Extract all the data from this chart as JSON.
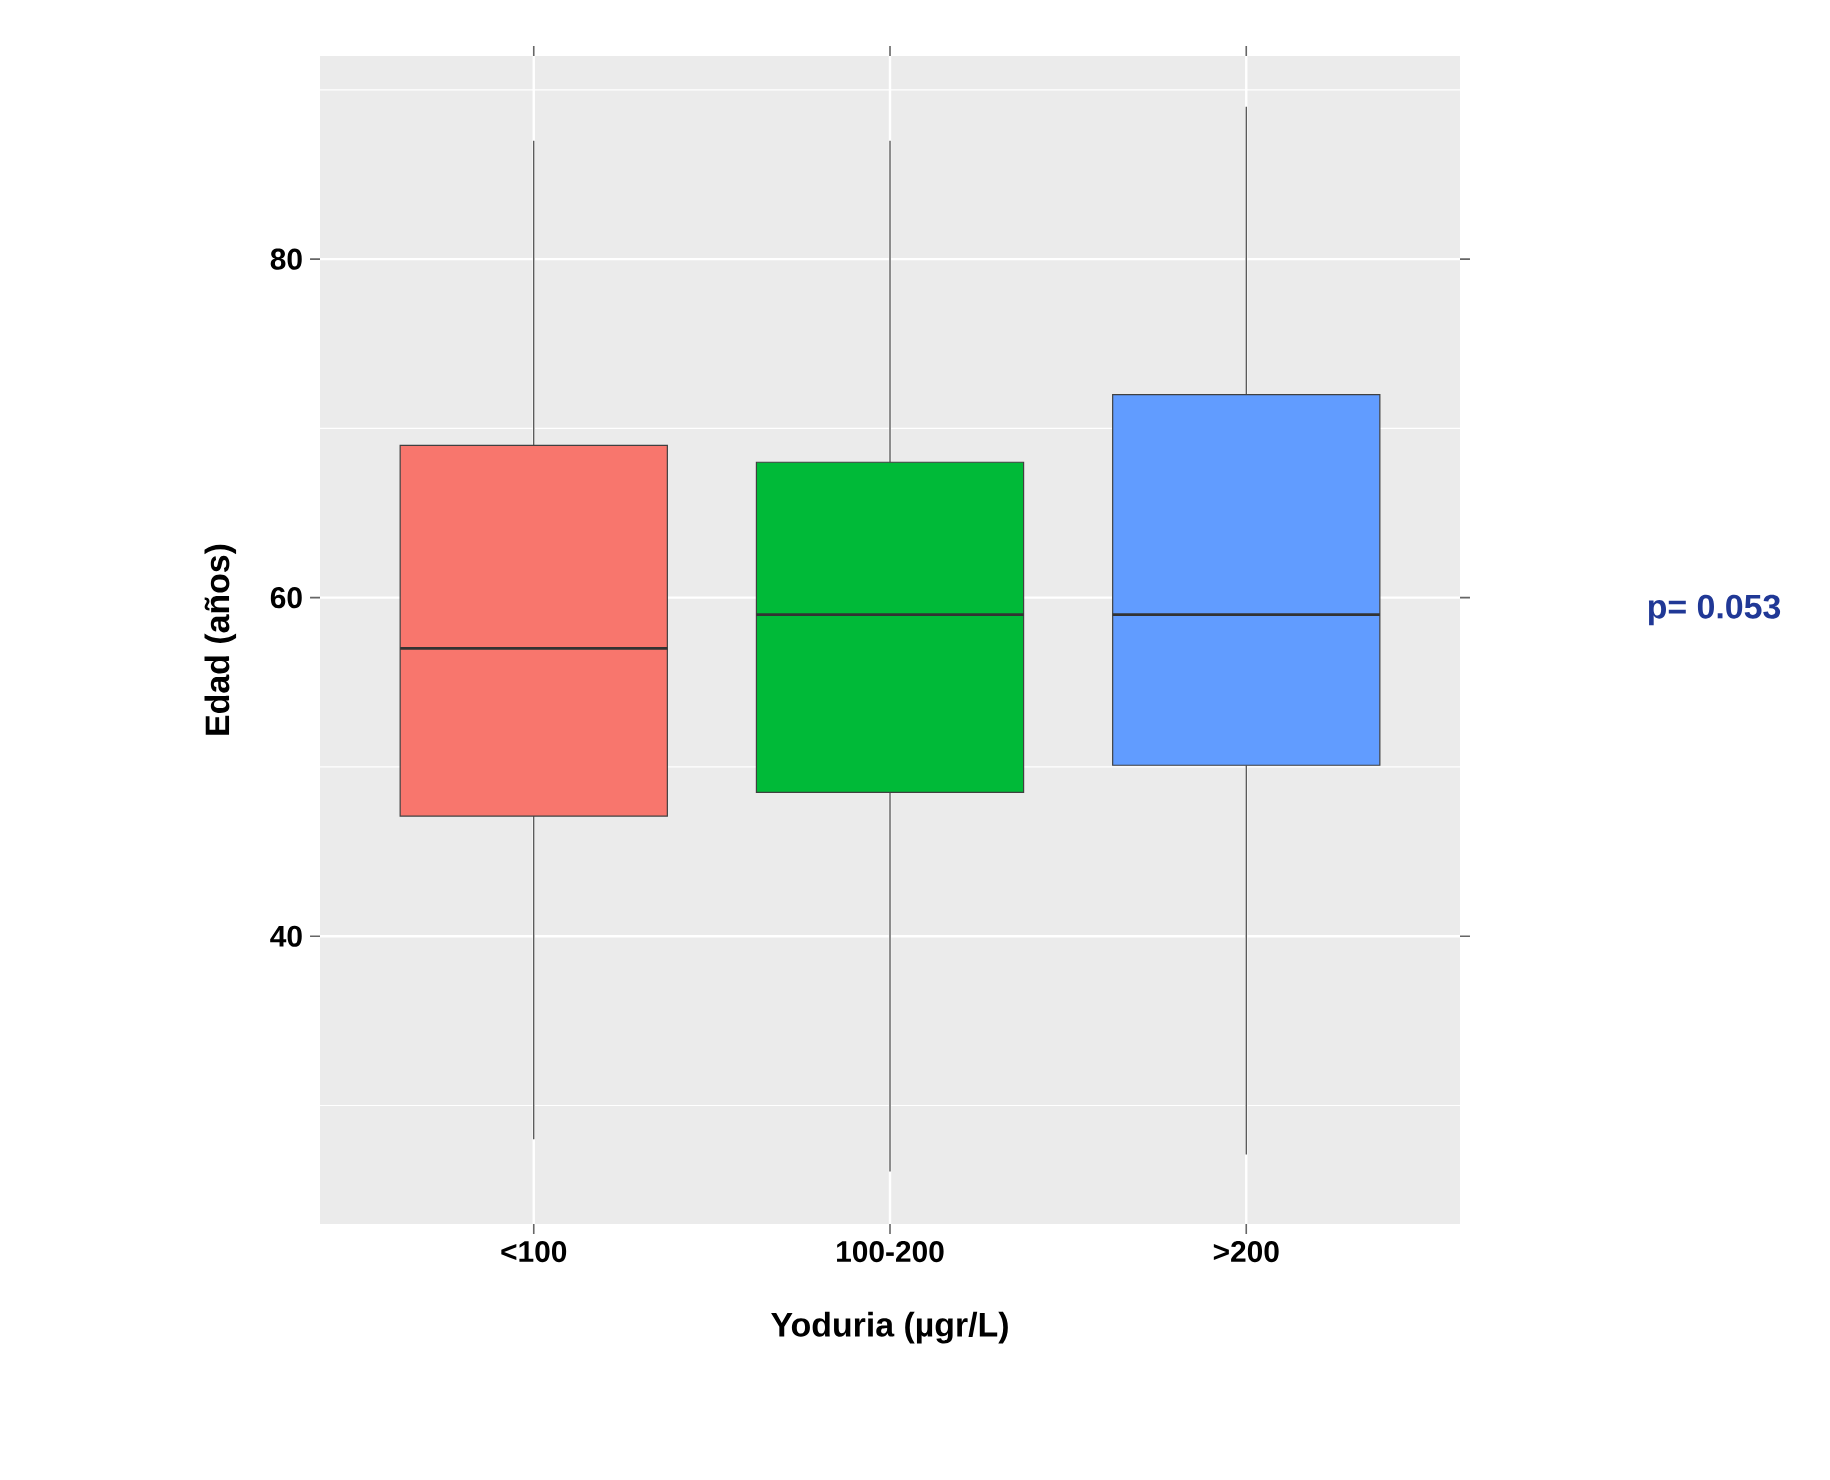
{
  "chart_data": {
    "type": "box",
    "xlabel": "Yoduria (µgr/L)",
    "ylabel": "Edad (años)",
    "categories": [
      "<100",
      "100-200",
      ">200"
    ],
    "colors": [
      "#f8766d",
      "#00ba38",
      "#619cff"
    ],
    "boxes": [
      {
        "low": 28,
        "q1": 47.1,
        "median": 57,
        "q3": 69,
        "high": 87
      },
      {
        "low": 26.1,
        "q1": 48.5,
        "median": 59,
        "q3": 68,
        "high": 87
      },
      {
        "low": 27.1,
        "q1": 50.1,
        "median": 59,
        "q3": 72,
        "high": 89
      }
    ],
    "ylim": [
      23,
      92
    ],
    "yticks": [
      40,
      60,
      80
    ],
    "grid": true,
    "annotations": [
      "p= 0.053"
    ]
  }
}
